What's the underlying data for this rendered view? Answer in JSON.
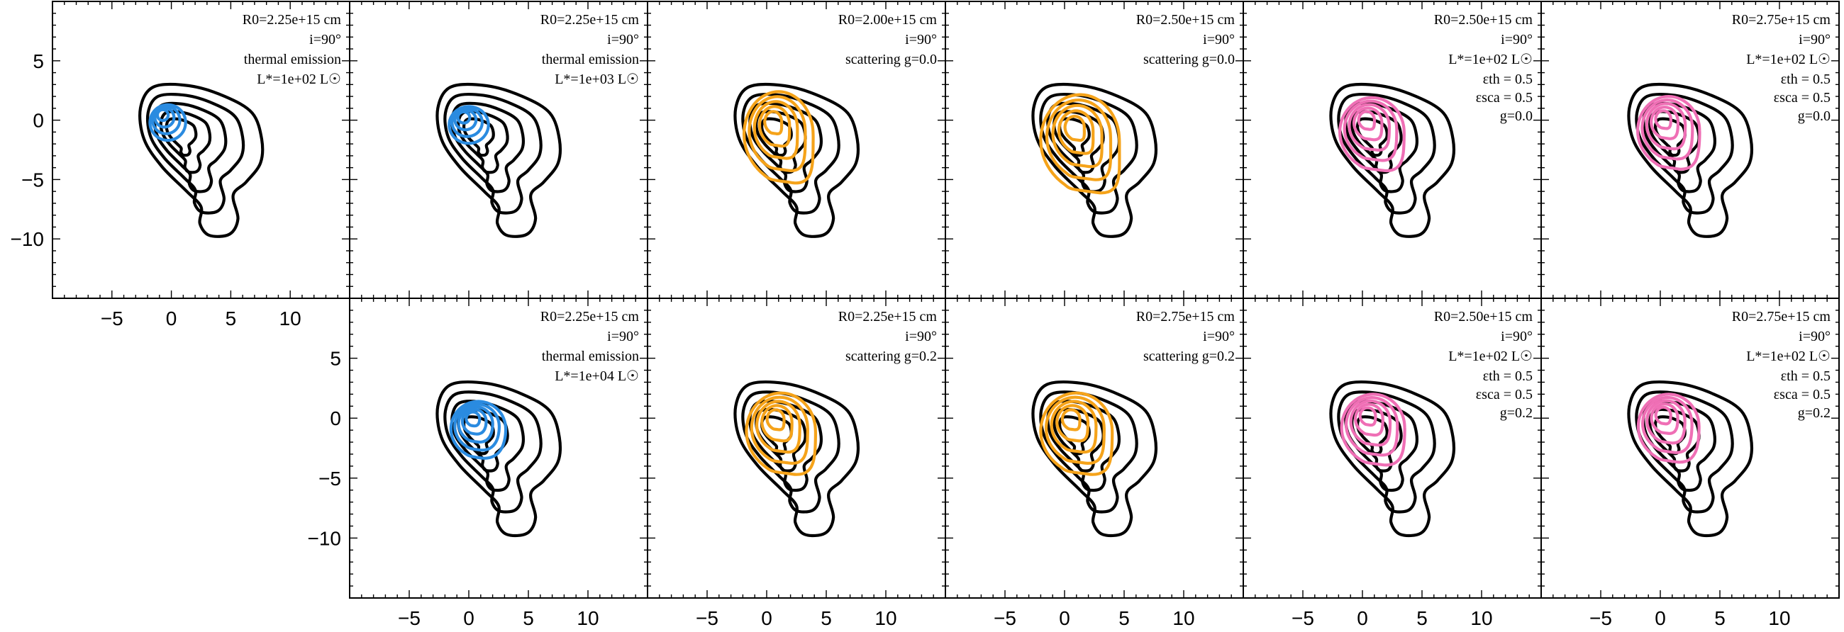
{
  "chart_data": {
    "type": "contour",
    "grid": {
      "rows": 2,
      "cols": 6
    },
    "axes": {
      "xlim": [
        -10,
        15
      ],
      "ylim": [
        -15,
        10
      ],
      "xticks": [
        -5,
        0,
        5,
        10
      ],
      "yticks": [
        -10,
        -5,
        0,
        5
      ],
      "xlabel": "",
      "ylabel": ""
    },
    "colors": {
      "observed": "#000000",
      "thermal": "#2a8be0",
      "scattering": "#f5a31a",
      "mixed": "#ef6fb5"
    },
    "observed_contour": {
      "levels": [
        0.2,
        0.4,
        0.6,
        0.8
      ],
      "outline_points": [
        [
          -1.5,
          2.8
        ],
        [
          1.5,
          2.9
        ],
        [
          4.5,
          2.0
        ],
        [
          6.8,
          0.6
        ],
        [
          7.6,
          -1.6
        ],
        [
          7.5,
          -3.6
        ],
        [
          6.3,
          -5.2
        ],
        [
          5.2,
          -6.3
        ],
        [
          5.6,
          -8.3
        ],
        [
          4.9,
          -9.6
        ],
        [
          3.2,
          -9.7
        ],
        [
          2.4,
          -8.7
        ],
        [
          2.5,
          -7.3
        ],
        [
          1.3,
          -6.0
        ],
        [
          -0.8,
          -3.9
        ],
        [
          -2.3,
          -1.6
        ],
        [
          -2.6,
          1.0
        ]
      ],
      "center": [
        0.3,
        -0.2
      ]
    },
    "panels": [
      {
        "row": 0,
        "col": 0,
        "model": "thermal",
        "annotation": [
          "R0=2.25e+15 cm",
          "i=90°",
          "thermal emission",
          "L*=1e+02 L☉"
        ],
        "model_contour": {
          "center": [
            -0.3,
            -0.2
          ],
          "size": [
            3.0,
            3.0
          ],
          "levels": 4,
          "stretch": 0.0
        },
        "show_yaxis": true,
        "show_xaxis": true
      },
      {
        "row": 0,
        "col": 1,
        "model": "thermal",
        "annotation": [
          "R0=2.25e+15 cm",
          "i=90°",
          "thermal emission",
          "L*=1e+03 L☉"
        ],
        "model_contour": {
          "center": [
            0.0,
            -0.4
          ],
          "size": [
            3.3,
            3.1
          ],
          "levels": 4,
          "stretch": 0.0
        }
      },
      {
        "row": 0,
        "col": 2,
        "model": "scattering",
        "annotation": [
          "R0=2.00e+15 cm",
          "i=90°",
          "scattering  g=0.0"
        ],
        "model_contour": {
          "center": [
            1.0,
            -1.2
          ],
          "size": [
            5.8,
            7.2
          ],
          "levels": 5,
          "stretch": 0.55
        }
      },
      {
        "row": 0,
        "col": 3,
        "model": "scattering",
        "annotation": [
          "R0=2.50e+15 cm",
          "i=90°",
          "scattering  g=0.0"
        ],
        "model_contour": {
          "center": [
            1.3,
            -1.7
          ],
          "size": [
            6.6,
            7.7
          ],
          "levels": 5,
          "stretch": 0.6
        }
      },
      {
        "row": 0,
        "col": 4,
        "model": "mixed",
        "annotation": [
          "R0=2.50e+15 cm",
          "i=90°",
          "L*=1e+02 L☉",
          "εth = 0.5",
          "εsca = 0.5",
          "g=0.0"
        ],
        "model_contour": {
          "center": [
            0.8,
            -1.0
          ],
          "size": [
            5.4,
            5.8
          ],
          "levels": 5,
          "stretch": 0.5
        }
      },
      {
        "row": 0,
        "col": 5,
        "model": "mixed",
        "annotation": [
          "R0=2.75e+15 cm",
          "i=90°",
          "L*=1e+02 L☉",
          "εth = 0.5",
          "εsca = 0.5",
          "g=0.0"
        ],
        "model_contour": {
          "center": [
            0.7,
            -0.9
          ],
          "size": [
            5.2,
            5.8
          ],
          "levels": 5,
          "stretch": 0.45
        }
      },
      {
        "row": 1,
        "col": 1,
        "model": "thermal",
        "annotation": [
          "R0=2.25e+15 cm",
          "i=90°",
          "thermal emission",
          "L*=1e+04 L☉"
        ],
        "model_contour": {
          "center": [
            0.8,
            -0.9
          ],
          "size": [
            4.6,
            4.6
          ],
          "levels": 5,
          "stretch": 0.25
        },
        "show_yaxis": true,
        "show_xaxis": true
      },
      {
        "row": 1,
        "col": 2,
        "model": "scattering",
        "annotation": [
          "R0=2.25e+15 cm",
          "i=90°",
          "scattering  g=0.2"
        ],
        "model_contour": {
          "center": [
            1.2,
            -1.1
          ],
          "size": [
            5.8,
            6.4
          ],
          "levels": 5,
          "stretch": 0.5
        },
        "show_xaxis": true
      },
      {
        "row": 1,
        "col": 3,
        "model": "scattering",
        "annotation": [
          "R0=2.75e+15 cm",
          "i=90°",
          "scattering  g=0.2"
        ],
        "model_contour": {
          "center": [
            1.0,
            -1.1
          ],
          "size": [
            6.0,
            6.4
          ],
          "levels": 5,
          "stretch": 0.5
        },
        "show_xaxis": true
      },
      {
        "row": 1,
        "col": 4,
        "model": "mixed",
        "annotation": [
          "R0=2.50e+15 cm",
          "i=90°",
          "L*=1e+02 L☉",
          "εth = 0.5",
          "εsca = 0.5",
          "g=0.2"
        ],
        "model_contour": {
          "center": [
            0.9,
            -0.8
          ],
          "size": [
            5.3,
            5.6
          ],
          "levels": 5,
          "stretch": 0.45
        },
        "show_xaxis": true
      },
      {
        "row": 1,
        "col": 5,
        "model": "mixed",
        "annotation": [
          "R0=2.75e+15 cm",
          "i=90°",
          "L*=1e+02 L☉",
          "εth = 0.5",
          "εsca = 0.5",
          "g=0.2"
        ],
        "model_contour": {
          "center": [
            0.7,
            -0.7
          ],
          "size": [
            5.1,
            5.4
          ],
          "levels": 5,
          "stretch": 0.4
        },
        "show_xaxis": true
      }
    ]
  }
}
